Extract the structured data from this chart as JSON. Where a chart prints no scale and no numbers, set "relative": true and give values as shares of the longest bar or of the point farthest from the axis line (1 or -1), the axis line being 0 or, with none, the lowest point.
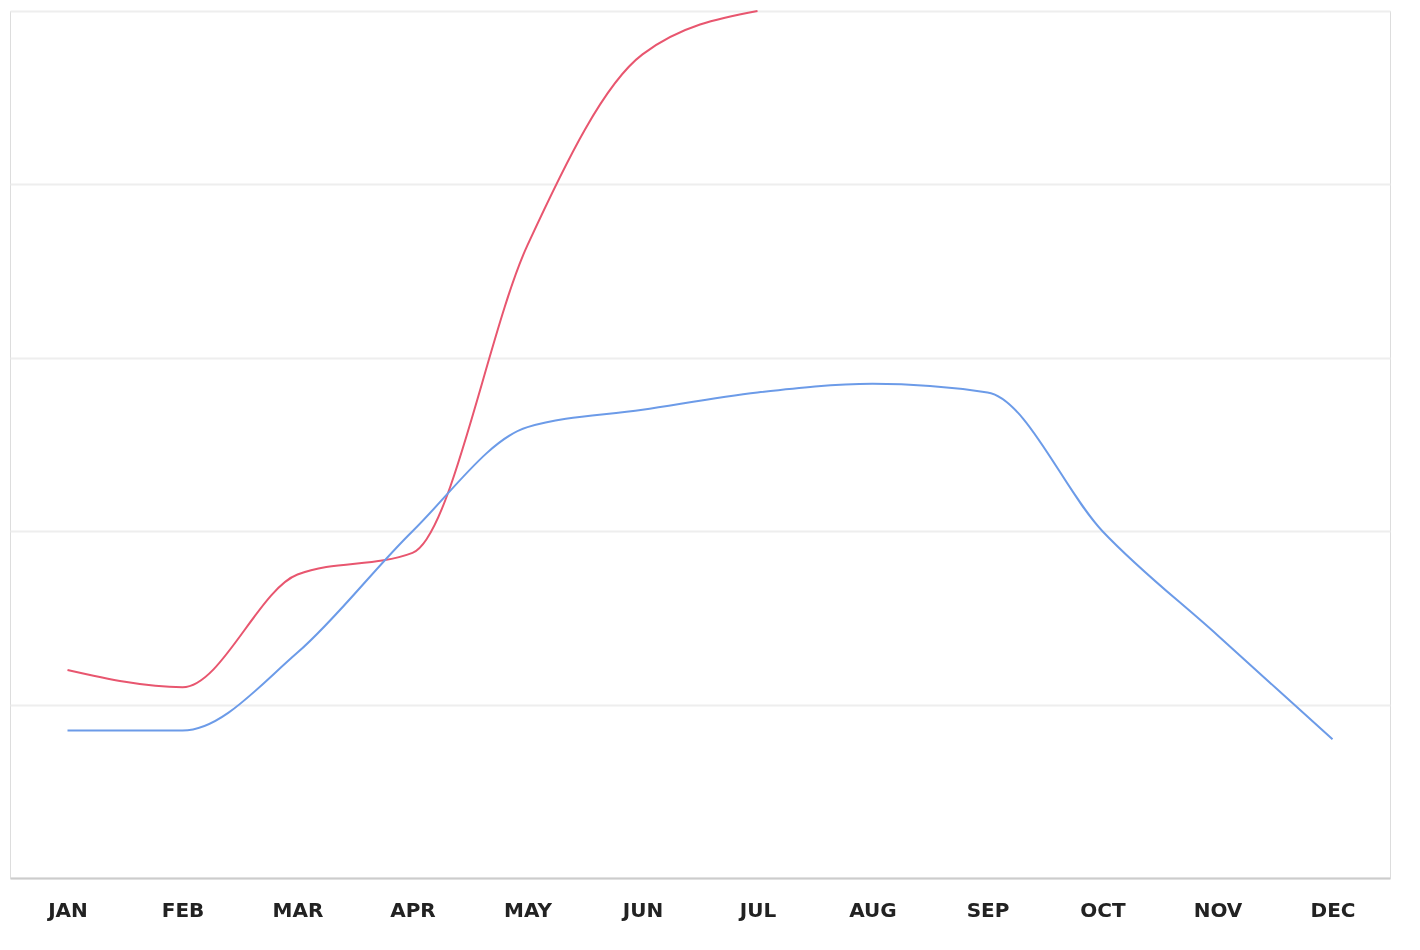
{
  "chart_data": {
    "type": "line",
    "relative": true,
    "categories": [
      "JAN",
      "FEB",
      "MAR",
      "APR",
      "MAY",
      "JUN",
      "JUL",
      "AUG",
      "SEP",
      "OCT",
      "NOV",
      "DEC"
    ],
    "series": [
      {
        "color": "#e8566f",
        "values": [
          0.24,
          0.22,
          0.35,
          0.375,
          0.73,
          0.95,
          1,
          null,
          null,
          null,
          null,
          null
        ]
      },
      {
        "color": "#6c9be8",
        "values": [
          0.17,
          0.17,
          0.26,
          0.4,
          0.52,
          0.54,
          0.56,
          0.57,
          0.56,
          0.4,
          0.28,
          0.16
        ]
      }
    ],
    "grid": "y",
    "marker": "none",
    "line_style": "solid"
  }
}
